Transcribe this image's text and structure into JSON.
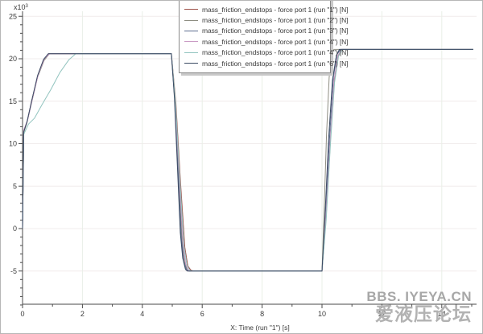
{
  "watermark": {
    "line1": "BBS. IYEYA.CN",
    "line2": "爱液压论坛"
  },
  "legend": {
    "items": [
      {
        "label": "mass_friction_endstops - force port 1 (run \"1\") [N]",
        "color": "#9e5149"
      },
      {
        "label": "mass_friction_endstops - force port 1 (run \"2\") [N]",
        "color": "#8e8e82"
      },
      {
        "label": "mass_friction_endstops - force port 1 (run \"3\") [N]",
        "color": "#5d6e90"
      },
      {
        "label": "mass_friction_endstops - force port 1 (run \"4\") [N]",
        "color": "#c99bc4"
      },
      {
        "label": "mass_friction_endstops - force port 1 (run \"4\") [N]",
        "color": "#92c4bf"
      },
      {
        "label": "mass_friction_endstops - force port 1 (run \"6\") [N]",
        "color": "#3a4a63"
      }
    ]
  },
  "chart_data": {
    "type": "line",
    "title": "",
    "xlabel": "X: Time (run \"1\") [s]",
    "ylabel": "",
    "y_multiplier": {
      "base": "x10",
      "exponent": "3"
    },
    "units": "N",
    "xlim": [
      0,
      15.15
    ],
    "ylim": [
      -8.9,
      25.6
    ],
    "grid": true,
    "legend_position": "top-center",
    "x_ticks_major": {
      "values": [
        0,
        2,
        4,
        6,
        8,
        10,
        12,
        14
      ],
      "labels": [
        "0",
        "2",
        "4",
        "6",
        "8",
        "10",
        "12",
        "14"
      ]
    },
    "x_ticks_minor": [
      1,
      3,
      5,
      7,
      9,
      11,
      13,
      15
    ],
    "y_ticks_major": {
      "values": [
        -5,
        0,
        5,
        10,
        15,
        20,
        25
      ],
      "labels": [
        "-5",
        "0",
        "5",
        "10",
        "15",
        "20",
        "25"
      ]
    },
    "y_ticks_minor": [
      -9,
      -8,
      -7,
      -6,
      -4,
      -3,
      -2,
      -1,
      1,
      2,
      3,
      4,
      6,
      7,
      8,
      9,
      11,
      12,
      13,
      14,
      16,
      17,
      18,
      19,
      21,
      22,
      23,
      24
    ],
    "series": [
      {
        "name": "run 1",
        "color": "#9e5149",
        "points": [
          [
            0,
            0
          ],
          [
            0.04,
            11.5
          ],
          [
            0.16,
            12.7
          ],
          [
            0.31,
            15.1
          ],
          [
            0.51,
            18.0
          ],
          [
            0.71,
            19.9
          ],
          [
            0.87,
            20.6
          ],
          [
            4.97,
            20.6
          ],
          [
            5.12,
            14.8
          ],
          [
            5.27,
            5.8
          ],
          [
            5.42,
            -2.2
          ],
          [
            5.52,
            -4.4
          ],
          [
            5.62,
            -4.9
          ],
          [
            5.72,
            -5
          ],
          [
            10.0,
            -5
          ],
          [
            10.14,
            1.5
          ],
          [
            10.28,
            10.3
          ],
          [
            10.42,
            17.6
          ],
          [
            10.55,
            20.4
          ],
          [
            10.68,
            21.1
          ],
          [
            15.05,
            21.1
          ]
        ]
      },
      {
        "name": "run 2",
        "color": "#8e8e82",
        "points": [
          [
            0,
            0
          ],
          [
            0.04,
            11.3
          ],
          [
            0.15,
            12.5
          ],
          [
            0.3,
            14.8
          ],
          [
            0.5,
            17.8
          ],
          [
            0.72,
            19.8
          ],
          [
            0.9,
            20.6
          ],
          [
            4.97,
            20.6
          ],
          [
            5.09,
            15.0
          ],
          [
            5.21,
            6.5
          ],
          [
            5.33,
            -1.5
          ],
          [
            5.42,
            -4.0
          ],
          [
            5.5,
            -4.9
          ],
          [
            5.58,
            -5
          ],
          [
            10.0,
            -5
          ],
          [
            10.07,
            2.0
          ],
          [
            10.15,
            11.0
          ],
          [
            10.24,
            17.8
          ],
          [
            10.32,
            20.6
          ],
          [
            10.4,
            21.1
          ],
          [
            15.05,
            21.1
          ]
        ]
      },
      {
        "name": "run 3",
        "color": "#5d6e90",
        "points": [
          [
            0,
            0
          ],
          [
            0.04,
            11.5
          ],
          [
            0.16,
            12.7
          ],
          [
            0.32,
            15.2
          ],
          [
            0.52,
            18.1
          ],
          [
            0.72,
            20.0
          ],
          [
            0.88,
            20.6
          ],
          [
            4.97,
            20.6
          ],
          [
            5.08,
            15.3
          ],
          [
            5.19,
            7.0
          ],
          [
            5.3,
            -1.0
          ],
          [
            5.38,
            -3.8
          ],
          [
            5.47,
            -4.8
          ],
          [
            5.54,
            -5
          ],
          [
            10.0,
            -5
          ],
          [
            10.12,
            1.5
          ],
          [
            10.25,
            10.5
          ],
          [
            10.38,
            17.8
          ],
          [
            10.5,
            20.5
          ],
          [
            10.62,
            21.1
          ],
          [
            15.05,
            21.1
          ]
        ]
      },
      {
        "name": "run 4",
        "color": "#c99bc4",
        "points": [
          [
            0,
            0
          ],
          [
            0.04,
            11.6
          ],
          [
            0.17,
            12.8
          ],
          [
            0.33,
            15.3
          ],
          [
            0.53,
            18.2
          ],
          [
            0.73,
            20.0
          ],
          [
            0.9,
            20.6
          ],
          [
            4.97,
            20.6
          ],
          [
            5.1,
            15.0
          ],
          [
            5.23,
            6.3
          ],
          [
            5.36,
            -1.8
          ],
          [
            5.45,
            -4.2
          ],
          [
            5.54,
            -4.9
          ],
          [
            5.62,
            -5
          ],
          [
            10.0,
            -5
          ],
          [
            10.13,
            1.2
          ],
          [
            10.27,
            10.0
          ],
          [
            10.4,
            17.5
          ],
          [
            10.53,
            20.4
          ],
          [
            10.66,
            21.1
          ],
          [
            15.05,
            21.1
          ]
        ]
      },
      {
        "name": "run 4b",
        "color": "#92c4bf",
        "points": [
          [
            0,
            0
          ],
          [
            0.04,
            11.1
          ],
          [
            0.2,
            12.3
          ],
          [
            0.4,
            13.0
          ],
          [
            0.65,
            14.6
          ],
          [
            0.95,
            16.4
          ],
          [
            1.25,
            18.4
          ],
          [
            1.55,
            19.9
          ],
          [
            1.78,
            20.6
          ],
          [
            4.97,
            20.6
          ],
          [
            5.11,
            14.8
          ],
          [
            5.25,
            6.0
          ],
          [
            5.39,
            -2.0
          ],
          [
            5.49,
            -4.3
          ],
          [
            5.58,
            -4.9
          ],
          [
            5.66,
            -5
          ],
          [
            10.0,
            -5
          ],
          [
            10.14,
            1.0
          ],
          [
            10.28,
            9.8
          ],
          [
            10.42,
            17.2
          ],
          [
            10.55,
            20.3
          ],
          [
            10.68,
            21.1
          ],
          [
            15.05,
            21.1
          ]
        ]
      },
      {
        "name": "run 6",
        "color": "#3a4a63",
        "points": [
          [
            0,
            0
          ],
          [
            0.04,
            11.4
          ],
          [
            0.15,
            12.6
          ],
          [
            0.3,
            15.0
          ],
          [
            0.5,
            18.0
          ],
          [
            0.7,
            19.9
          ],
          [
            0.86,
            20.6
          ],
          [
            4.97,
            20.6
          ],
          [
            5.07,
            15.5
          ],
          [
            5.17,
            7.5
          ],
          [
            5.27,
            -0.5
          ],
          [
            5.35,
            -3.5
          ],
          [
            5.44,
            -4.8
          ],
          [
            5.5,
            -5
          ],
          [
            10.0,
            -5
          ],
          [
            10.1,
            1.5
          ],
          [
            10.22,
            10.5
          ],
          [
            10.35,
            17.5
          ],
          [
            10.48,
            20.4
          ],
          [
            10.58,
            21.1
          ],
          [
            15.05,
            21.1
          ]
        ]
      }
    ]
  }
}
